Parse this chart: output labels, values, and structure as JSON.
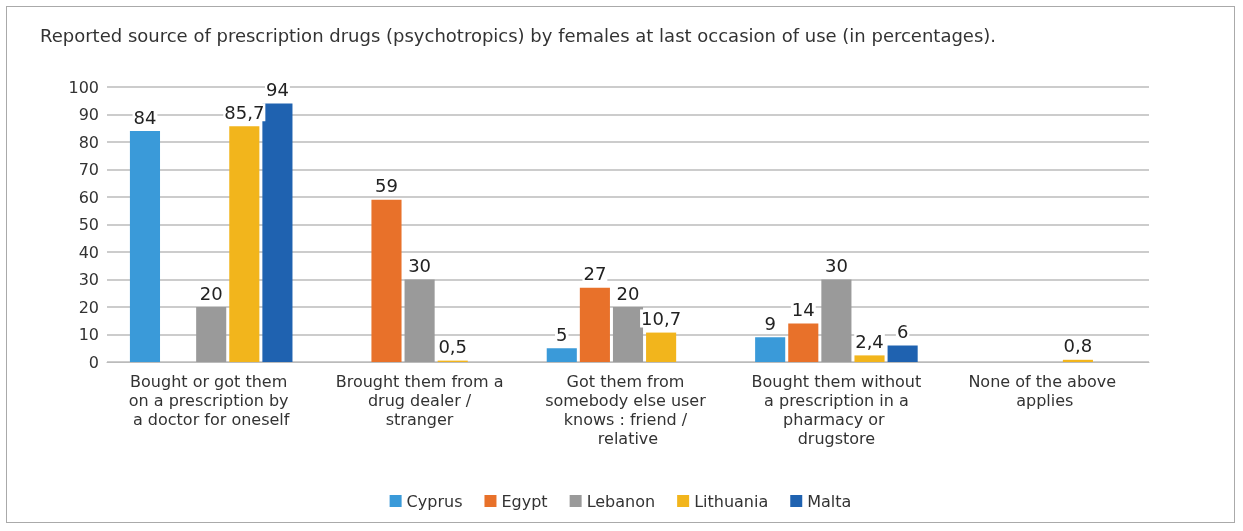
{
  "chart_data": {
    "type": "bar",
    "title": "Reported source of prescription drugs (psychotropics) by females at last occasion of use (in percentages).",
    "categories": [
      "Bought or got them on a prescription by a doctor for oneself",
      "Brought them from a drug dealer / stranger",
      "Got them from somebody else user knows : friend / relative",
      "Bought them without a prescription in a pharmacy or drugstore",
      "None of the above applies"
    ],
    "series": [
      {
        "name": "Cyprus",
        "color": "#3a9ad9",
        "values": [
          84,
          null,
          5,
          9,
          null
        ],
        "value_labels": [
          "84",
          null,
          "5",
          "9",
          null
        ]
      },
      {
        "name": "Egypt",
        "color": "#e8712a",
        "values": [
          null,
          59,
          27,
          14,
          null
        ],
        "value_labels": [
          null,
          "59",
          "27",
          "14",
          null
        ]
      },
      {
        "name": "Lebanon",
        "color": "#9a9a9a",
        "values": [
          20,
          30,
          20,
          30,
          null
        ],
        "value_labels": [
          "20",
          "30",
          "20",
          "30",
          null
        ]
      },
      {
        "name": "Lithuania",
        "color": "#f2b51c",
        "values": [
          85.7,
          0.5,
          10.7,
          2.4,
          0.8
        ],
        "value_labels": [
          "85,7",
          "0,5",
          "10,7",
          "2,4",
          "0,8"
        ]
      },
      {
        "name": "Malta",
        "color": "#1f62b0",
        "values": [
          94,
          null,
          null,
          6,
          null
        ],
        "value_labels": [
          "94",
          null,
          null,
          "6",
          null
        ]
      }
    ],
    "ylim": [
      0,
      100
    ],
    "yticks": [
      0,
      10,
      20,
      30,
      40,
      50,
      60,
      70,
      80,
      90,
      100
    ],
    "grid": "y",
    "legend": "bottom"
  }
}
